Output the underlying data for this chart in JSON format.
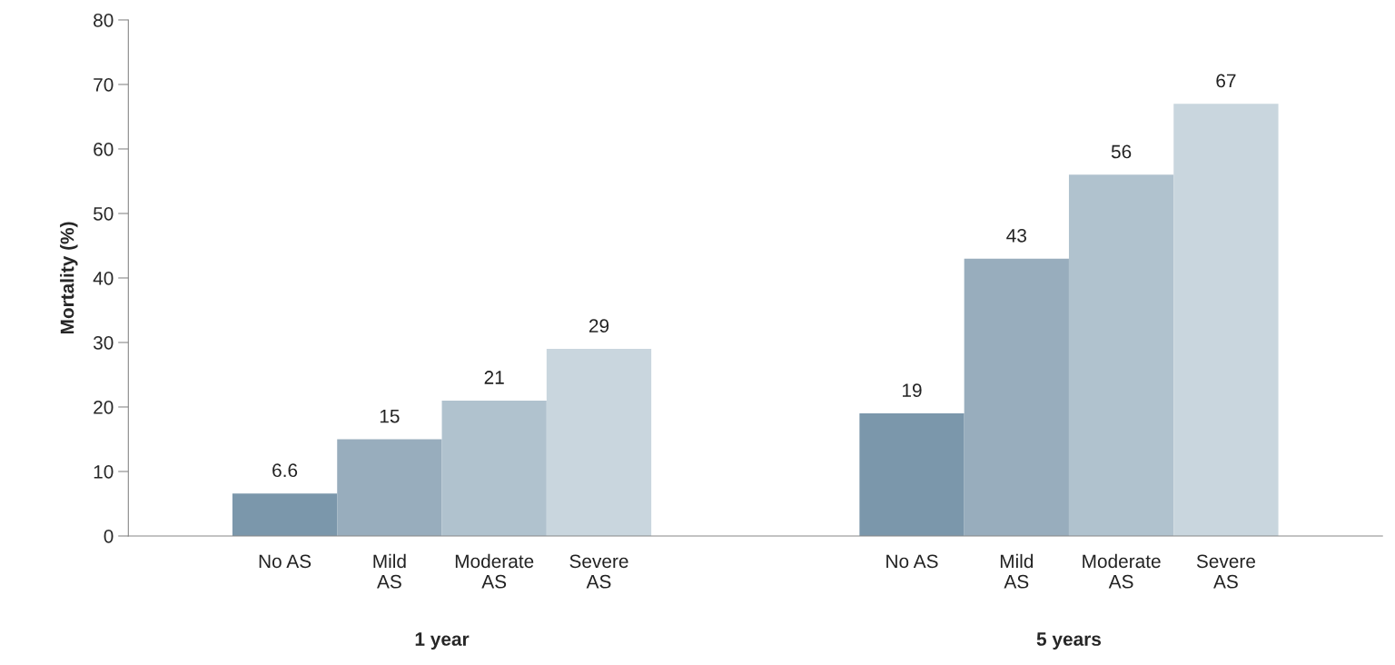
{
  "chart_data": {
    "type": "bar",
    "categories": [
      "1 year",
      "5 years"
    ],
    "series": [
      {
        "name": "No AS",
        "color": "#7b97ab",
        "values": [
          6.6,
          19
        ]
      },
      {
        "name": "Mild\nAS",
        "color": "#98adbd",
        "values": [
          15,
          43
        ]
      },
      {
        "name": "Moderate\nAS",
        "color": "#b0c2ce",
        "values": [
          21,
          56
        ]
      },
      {
        "name": "Severe\nAS",
        "color": "#c9d6de",
        "values": [
          29,
          67
        ]
      }
    ],
    "ylabel": "Mortality (%)",
    "ylim": [
      0,
      80
    ],
    "yticks": [
      0,
      10,
      20,
      30,
      40,
      50,
      60,
      70,
      80
    ],
    "data_labels": true,
    "grid": false,
    "legend": false
  }
}
